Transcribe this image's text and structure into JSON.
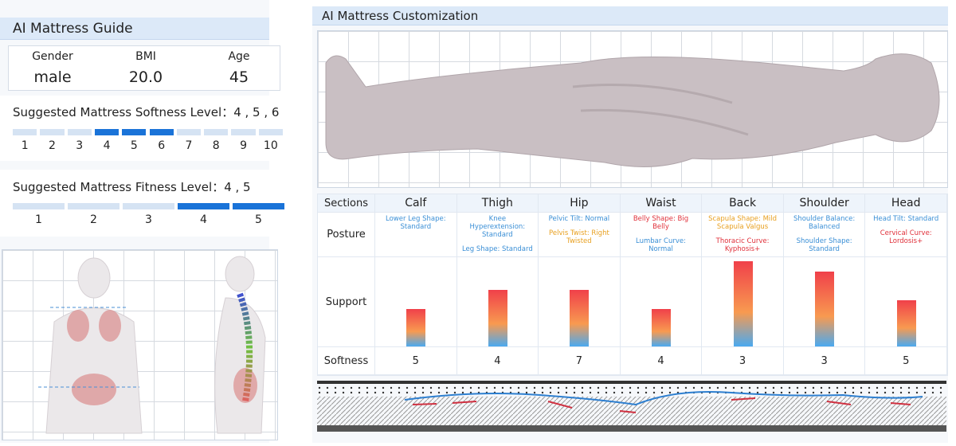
{
  "guide": {
    "title": "AI Mattress Guide",
    "info": [
      {
        "label": "Gender",
        "value": "male"
      },
      {
        "label": "BMI",
        "value": "20.0"
      },
      {
        "label": "Age",
        "value": 45
      }
    ],
    "softness": {
      "label": "Suggested Mattress Softness Level：",
      "value": "4 , 5 , 6",
      "levels": [
        1,
        2,
        3,
        4,
        5,
        6,
        7,
        8,
        9,
        10
      ],
      "active": [
        false,
        false,
        false,
        true,
        true,
        true,
        false,
        false,
        false,
        false
      ]
    },
    "fitness": {
      "label": "Suggested Mattress Fitness Level：",
      "value": "4 , 5",
      "levels": [
        1,
        2,
        3,
        4,
        5
      ],
      "active": [
        false,
        false,
        false,
        true,
        true
      ]
    }
  },
  "customization": {
    "title": "AI Mattress Customization",
    "row_labels": [
      "Sections",
      "Posture",
      "Support",
      "Softness"
    ],
    "sections": [
      {
        "name": "Calf",
        "posture": [
          {
            "text": "Lower Leg Shape: Standard",
            "color": "#3a8fd6"
          }
        ],
        "support": 47,
        "softness": 5
      },
      {
        "name": "Thigh",
        "posture": [
          {
            "text": "Knee Hyperextension: Standard",
            "color": "#3a8fd6"
          },
          {
            "text": "Leg Shape: Standard",
            "color": "#3a8fd6"
          }
        ],
        "support": 71,
        "softness": 4
      },
      {
        "name": "Hip",
        "posture": [
          {
            "text": "Pelvic Tilt: Normal",
            "color": "#3a8fd6"
          },
          {
            "text": "Pelvis Twist: Right Twisted",
            "color": "#e8a020"
          }
        ],
        "support": 71,
        "softness": 7
      },
      {
        "name": "Waist",
        "posture": [
          {
            "text": "Belly Shape: Big Belly",
            "color": "#e0303a"
          },
          {
            "text": "Lumbar Curve: Normal",
            "color": "#3a8fd6"
          }
        ],
        "support": 47,
        "softness": 4
      },
      {
        "name": "Back",
        "posture": [
          {
            "text": "Scapula Shape: Mild Scapula Valgus",
            "color": "#e8a020"
          },
          {
            "text": "Thoracic Curve: Kyphosis+",
            "color": "#e0303a"
          }
        ],
        "support": 107,
        "softness": 3
      },
      {
        "name": "Shoulder",
        "posture": [
          {
            "text": "Shoulder Balance: Balanced",
            "color": "#3a8fd6"
          },
          {
            "text": "Shoulder Shape: Standard",
            "color": "#3a8fd6"
          }
        ],
        "support": 94,
        "softness": 3
      },
      {
        "name": "Head",
        "posture": [
          {
            "text": "Head Tilt: Standard",
            "color": "#3a8fd6"
          },
          {
            "text": "Cervical Curve: Lordosis+",
            "color": "#e0303a"
          }
        ],
        "support": 58,
        "softness": 5
      }
    ]
  }
}
